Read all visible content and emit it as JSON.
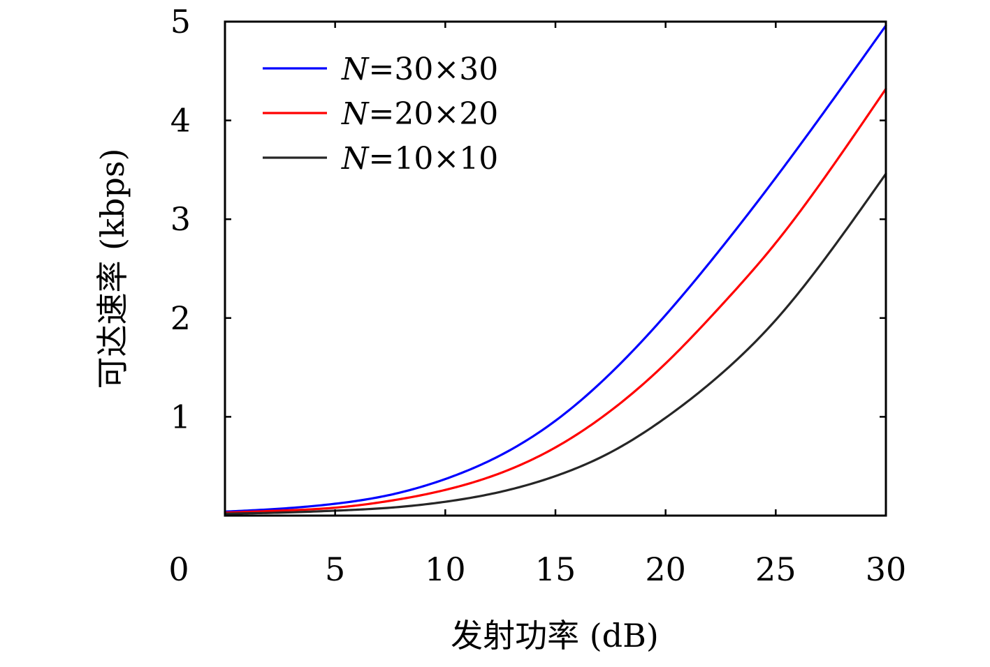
{
  "chart_data": {
    "type": "line",
    "title": "",
    "xlabel": "发射功率 (dB)",
    "ylabel": "可达速率 (kbps)",
    "xlim": [
      0,
      30
    ],
    "ylim": [
      0,
      5
    ],
    "x_ticks": [
      0,
      5,
      10,
      15,
      20,
      25,
      30
    ],
    "x_tick_labels": [
      "0",
      "5",
      "10",
      "15",
      "20",
      "25",
      "30"
    ],
    "y_ticks": [
      1,
      2,
      3,
      4,
      5
    ],
    "y_tick_labels": [
      "1",
      "2",
      "3",
      "4",
      "5"
    ],
    "grid": false,
    "legend_position": "top-left",
    "x": [
      0,
      2.5,
      5,
      7.5,
      10,
      12.5,
      15,
      17.5,
      20,
      22.5,
      25,
      27.5,
      30
    ],
    "series": [
      {
        "name": "N=30×30",
        "name_var": "N",
        "name_rest": "=30×30",
        "color": "#0000ff",
        "values": [
          0.04,
          0.07,
          0.12,
          0.21,
          0.37,
          0.61,
          0.96,
          1.44,
          2.03,
          2.7,
          3.42,
          4.18,
          4.96
        ]
      },
      {
        "name": "N=20×20",
        "name_var": "N",
        "name_rest": "=20×20",
        "color": "#ff0000",
        "values": [
          0.03,
          0.05,
          0.08,
          0.15,
          0.26,
          0.43,
          0.69,
          1.06,
          1.54,
          2.12,
          2.76,
          3.51,
          4.32
        ]
      },
      {
        "name": "N=10×10",
        "name_var": "N",
        "name_rest": "=10×10",
        "color": "#262626",
        "values": [
          0.02,
          0.03,
          0.05,
          0.08,
          0.14,
          0.24,
          0.4,
          0.64,
          0.99,
          1.43,
          1.98,
          2.68,
          3.46
        ]
      }
    ]
  }
}
